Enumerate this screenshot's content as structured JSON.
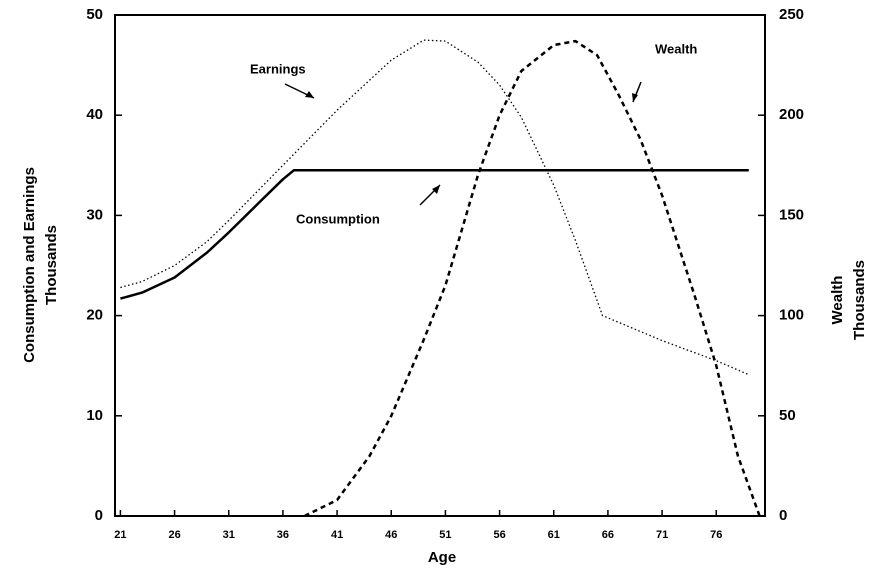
{
  "chart_data": {
    "type": "line",
    "xlabel": "Age",
    "ylabel": [
      "Consumption and Earnings",
      "Thousands"
    ],
    "y2label": [
      "Wealth",
      "Thousands"
    ],
    "xlim": [
      20.5,
      80.5
    ],
    "xticks": [
      21,
      26,
      31,
      36,
      41,
      46,
      51,
      56,
      61,
      66,
      71,
      76
    ],
    "ylim": [
      0,
      50
    ],
    "yticks": [
      0,
      10,
      20,
      30,
      40,
      50
    ],
    "y2lim": [
      0,
      250
    ],
    "y2ticks": [
      0,
      50,
      100,
      150,
      200,
      250
    ],
    "series": [
      {
        "name": "Consumption",
        "color": "#000000",
        "style": "solid",
        "x": [
          21,
          23,
          26,
          29,
          31,
          34,
          36,
          37,
          50,
          60,
          70,
          79
        ],
        "values": [
          21.7,
          22.3,
          23.8,
          26.3,
          28.3,
          31.5,
          33.6,
          34.5,
          34.5,
          34.5,
          34.5,
          34.5
        ]
      },
      {
        "name": "Earnings",
        "color": "#000000",
        "style": "dotted",
        "x": [
          21,
          23,
          26,
          29,
          31,
          34,
          36,
          41,
          46,
          49,
          51,
          54,
          56,
          58,
          61,
          63,
          65.5,
          71,
          76,
          79
        ],
        "values": [
          22.8,
          23.4,
          25,
          27.4,
          29.5,
          32.8,
          35,
          40.5,
          45.5,
          47.5,
          47.4,
          45.3,
          43,
          39.8,
          33,
          27.5,
          20,
          17.5,
          15.5,
          14.1
        ]
      },
      {
        "name": "Wealth",
        "color": "#000000",
        "style": "dashed",
        "axis": "y2",
        "x": [
          38,
          41,
          44,
          46,
          49,
          51,
          54,
          56,
          58,
          61,
          63,
          65,
          67,
          69,
          71,
          74,
          76,
          78,
          80
        ],
        "values": [
          0,
          8,
          30,
          50,
          88,
          115,
          170,
          200,
          222,
          235,
          237,
          230,
          210,
          188,
          160,
          110,
          75,
          30,
          0
        ]
      }
    ]
  }
}
